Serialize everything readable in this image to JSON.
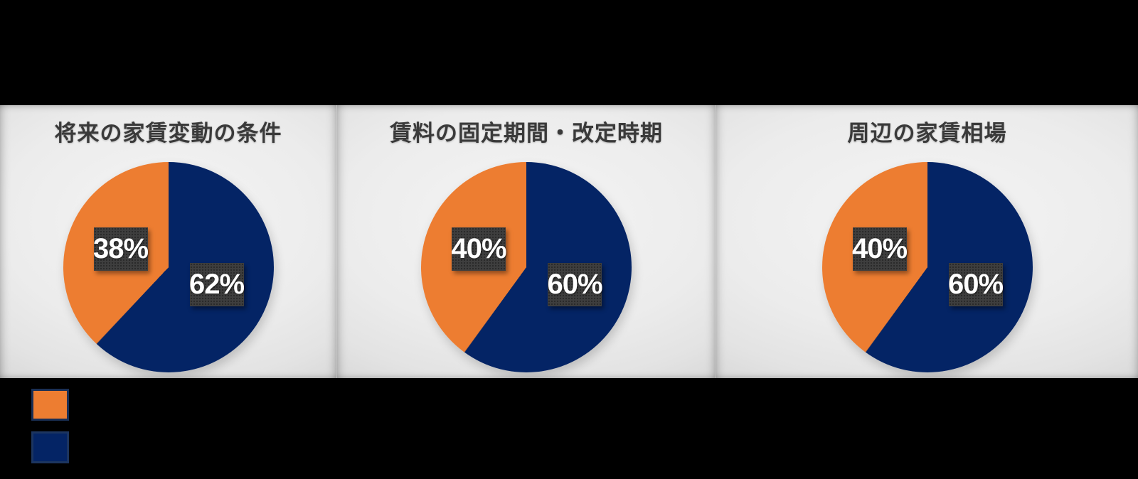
{
  "colors": {
    "orange": "#ED7D31",
    "navy": "#042465",
    "label_box_bg": "#3E3E3E",
    "label_text": "#FFFFFF",
    "title_text": "#3A3A3A",
    "panel_bg": "#EDEDED",
    "outer_bg": "#000000"
  },
  "chart_data": [
    {
      "type": "pie",
      "title": "将来の家賃変動の条件",
      "slices": [
        {
          "label": "38%",
          "value": 38,
          "color": "orange"
        },
        {
          "label": "62%",
          "value": 62,
          "color": "navy"
        }
      ],
      "start_angle_deg": 0,
      "layout": "navy slice clockwise from 12 o'clock, orange fills remainder"
    },
    {
      "type": "pie",
      "title": "賃料の固定期間・改定時期",
      "slices": [
        {
          "label": "40%",
          "value": 40,
          "color": "orange"
        },
        {
          "label": "60%",
          "value": 60,
          "color": "navy"
        }
      ],
      "start_angle_deg": 0,
      "layout": "navy slice clockwise from 12 o'clock, orange fills remainder"
    },
    {
      "type": "pie",
      "title": "周辺の家賃相場",
      "slices": [
        {
          "label": "40%",
          "value": 40,
          "color": "orange"
        },
        {
          "label": "60%",
          "value": 60,
          "color": "navy"
        }
      ],
      "start_angle_deg": 0,
      "layout": "navy slice clockwise from 12 o'clock, orange fills remainder"
    }
  ],
  "legend": {
    "labels_visible": false,
    "swatches": [
      {
        "color": "orange"
      },
      {
        "color": "navy"
      }
    ]
  }
}
